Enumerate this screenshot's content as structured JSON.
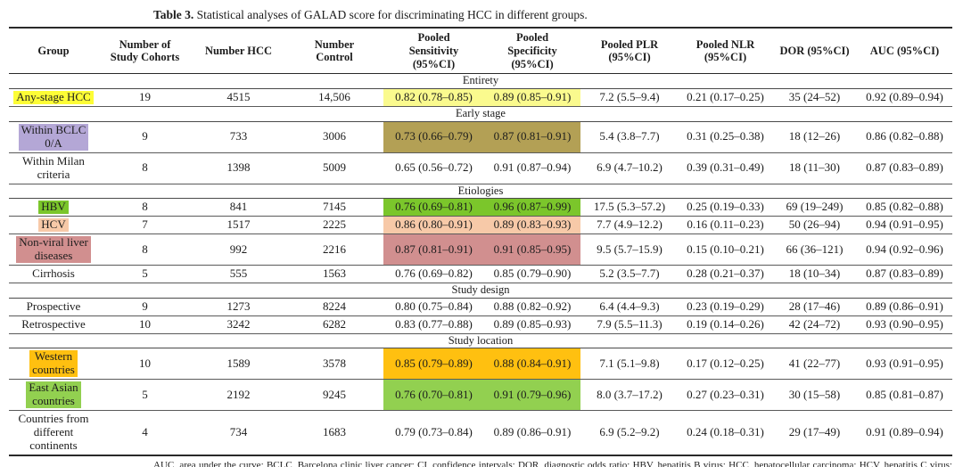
{
  "page": {
    "caption_label": "Table 3.",
    "caption_text": "Statistical analyses of GALAD score for discriminating HCC in different groups."
  },
  "table": {
    "columns": [
      "Group",
      "Number of\nStudy Cohorts",
      "Number HCC",
      "Number\nControl",
      "Pooled\nSensitivity\n(95%CI)",
      "Pooled\nSpecificity\n(95%CI)",
      "Pooled PLR\n(95%CI)",
      "Pooled NLR\n(95%CI)",
      "DOR (95%CI)",
      "AUC (95%CI)"
    ],
    "highlight_colors": {
      "yellow_label": "#fdfd36",
      "yellow_band": "#fafa8e",
      "purple_label": "#b4a7d6",
      "olive_band": "#b3a055",
      "green_bright": "#7bc62b",
      "peach": "#f7c9a8",
      "rose": "#d18f8f",
      "amber": "#ffc010",
      "green_light": "#92d050"
    },
    "sections": [
      {
        "title": "Entirety",
        "rows": [
          {
            "group": "Any-stage HCC",
            "label_bg": "#fdfd36",
            "band_bg": "#fafa8e",
            "cells": [
              "19",
              "4515",
              "14,506",
              "0.82 (0.78–0.85)",
              "0.89 (0.85–0.91)",
              "7.2 (5.5–9.4)",
              "0.21 (0.17–0.25)",
              "35 (24–52)",
              "0.92 (0.89–0.94)"
            ]
          }
        ]
      },
      {
        "title": "Early stage",
        "rows": [
          {
            "group": "Within BCLC\n0/A",
            "label_bg": "#b4a7d6",
            "band_bg": "#b3a055",
            "cells": [
              "9",
              "733",
              "3006",
              "0.73 (0.66–0.79)",
              "0.87 (0.81–0.91)",
              "5.4 (3.8–7.7)",
              "0.31 (0.25–0.38)",
              "18 (12–26)",
              "0.86 (0.82–0.88)"
            ]
          },
          {
            "group": "Within Milan\ncriteria",
            "label_bg": null,
            "band_bg": null,
            "cells": [
              "8",
              "1398",
              "5009",
              "0.65 (0.56–0.72)",
              "0.91 (0.87–0.94)",
              "6.9 (4.7–10.2)",
              "0.39 (0.31–0.49)",
              "18 (11–30)",
              "0.87 (0.83–0.89)"
            ]
          }
        ]
      },
      {
        "title": "Etiologies",
        "rows": [
          {
            "group": "HBV",
            "label_bg": "#7bc62b",
            "band_bg": "#7bc62b",
            "cells": [
              "8",
              "841",
              "7145",
              "0.76 (0.69–0.81)",
              "0.96 (0.87–0.99)",
              "17.5 (5.3–57.2)",
              "0.25 (0.19–0.33)",
              "69 (19–249)",
              "0.85 (0.82–0.88)"
            ]
          },
          {
            "group": "HCV",
            "label_bg": "#f7c9a8",
            "band_bg": "#f7c9a8",
            "cells": [
              "7",
              "1517",
              "2225",
              "0.86 (0.80–0.91)",
              "0.89 (0.83–0.93)",
              "7.7 (4.9–12.2)",
              "0.16 (0.11–0.23)",
              "50 (26–94)",
              "0.94 (0.91–0.95)"
            ]
          },
          {
            "group": "Non-viral liver\ndiseases",
            "label_bg": "#d18f8f",
            "band_bg": "#d18f8f",
            "cells": [
              "8",
              "992",
              "2216",
              "0.87 (0.81–0.91)",
              "0.91 (0.85–0.95)",
              "9.5 (5.7–15.9)",
              "0.15 (0.10–0.21)",
              "66 (36–121)",
              "0.94 (0.92–0.96)"
            ]
          },
          {
            "group": "Cirrhosis",
            "label_bg": null,
            "band_bg": null,
            "cells": [
              "5",
              "555",
              "1563",
              "0.76 (0.69–0.82)",
              "0.85 (0.79–0.90)",
              "5.2 (3.5–7.7)",
              "0.28 (0.21–0.37)",
              "18 (10–34)",
              "0.87 (0.83–0.89)"
            ]
          }
        ]
      },
      {
        "title": "Study design",
        "rows": [
          {
            "group": "Prospective",
            "label_bg": null,
            "band_bg": null,
            "cells": [
              "9",
              "1273",
              "8224",
              "0.80 (0.75–0.84)",
              "0.88 (0.82–0.92)",
              "6.4 (4.4–9.3)",
              "0.23 (0.19–0.29)",
              "28 (17–46)",
              "0.89 (0.86–0.91)"
            ]
          },
          {
            "group": "Retrospective",
            "label_bg": null,
            "band_bg": null,
            "cells": [
              "10",
              "3242",
              "6282",
              "0.83 (0.77–0.88)",
              "0.89 (0.85–0.93)",
              "7.9 (5.5–11.3)",
              "0.19 (0.14–0.26)",
              "42 (24–72)",
              "0.93 (0.90–0.95)"
            ]
          }
        ]
      },
      {
        "title": "Study location",
        "rows": [
          {
            "group": "Western\ncountries",
            "label_bg": "#ffc010",
            "band_bg": "#ffc010",
            "cells": [
              "10",
              "1589",
              "3578",
              "0.85 (0.79–0.89)",
              "0.88 (0.84–0.91)",
              "7.1 (5.1–9.8)",
              "0.17 (0.12–0.25)",
              "41 (22–77)",
              "0.93 (0.91–0.95)"
            ]
          },
          {
            "group": "East Asian\ncountries",
            "label_bg": "#92d050",
            "band_bg": "#92d050",
            "cells": [
              "5",
              "2192",
              "9245",
              "0.76 (0.70–0.81)",
              "0.91 (0.79–0.96)",
              "8.0 (3.7–17.2)",
              "0.27 (0.23–0.31)",
              "30 (15–58)",
              "0.85 (0.81–0.87)"
            ]
          },
          {
            "group": "Countries from\ndifferent\ncontinents",
            "label_bg": null,
            "band_bg": null,
            "cells": [
              "4",
              "734",
              "1683",
              "0.79 (0.73–0.84)",
              "0.89 (0.86–0.91)",
              "6.9 (5.2–9.2)",
              "0.24 (0.18–0.31)",
              "29 (17–49)",
              "0.91 (0.89–0.94)"
            ]
          }
        ]
      }
    ],
    "footnote": "AUC, area under the curve; BCLC, Barcelona clinic liver cancer; CI, confidence intervals; DOR, diagnostic odds ratio; HBV, hepatitis B virus; HCC, hepatocellular carcinoma; HCV, hepatitis C virus; NLR, negative likelihood ratio; PLR, positive likelihood ratio."
  }
}
